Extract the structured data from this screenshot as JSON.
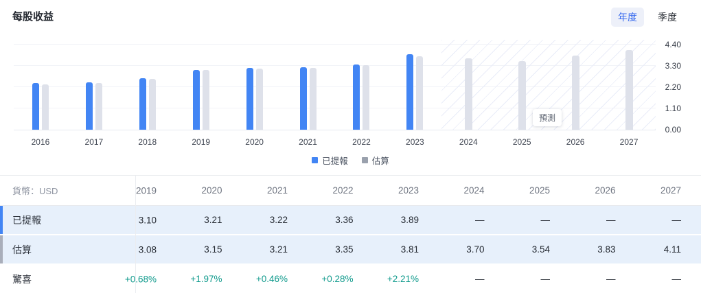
{
  "header": {
    "title": "每股收益",
    "period_tabs": [
      {
        "label": "年度",
        "selected": true
      },
      {
        "label": "季度",
        "selected": false
      }
    ]
  },
  "chart_data": {
    "type": "bar",
    "title": "每股收益",
    "categories": [
      "2016",
      "2017",
      "2018",
      "2019",
      "2020",
      "2021",
      "2022",
      "2023",
      "2024",
      "2025",
      "2026",
      "2027"
    ],
    "series": [
      {
        "name": "已提報",
        "color": "#4285f4",
        "values": [
          2.4,
          2.44,
          2.65,
          3.1,
          3.21,
          3.22,
          3.36,
          3.89,
          null,
          null,
          null,
          null
        ]
      },
      {
        "name": "估算",
        "color": "#dee1ea",
        "values": [
          2.33,
          2.43,
          2.61,
          3.08,
          3.15,
          3.21,
          3.35,
          3.81,
          3.7,
          3.54,
          3.83,
          4.11
        ]
      }
    ],
    "y_ticks": [
      "0.00",
      "1.10",
      "2.20",
      "3.30",
      "4.40"
    ],
    "ylim": [
      0,
      4.68
    ],
    "grid": true,
    "legend_position": "bottom",
    "legend_swatch_colors": [
      "#4285f4",
      "#9aa1ad"
    ],
    "forecast_start_index": 8,
    "forecast_label": "預測"
  },
  "table": {
    "currency_label": "貨幣：USD",
    "years": [
      "2019",
      "2020",
      "2021",
      "2022",
      "2023",
      "2024",
      "2025",
      "2026",
      "2027"
    ],
    "rows": [
      {
        "key": "reported",
        "label": "已提報",
        "indicator": "#4285f4",
        "highlight": true,
        "values": [
          "3.10",
          "3.21",
          "3.22",
          "3.36",
          "3.89",
          "—",
          "—",
          "—",
          "—"
        ]
      },
      {
        "key": "estimate",
        "label": "估算",
        "indicator": "#a9aeba",
        "highlight": true,
        "values": [
          "3.08",
          "3.15",
          "3.21",
          "3.35",
          "3.81",
          "3.70",
          "3.54",
          "3.83",
          "4.11"
        ]
      },
      {
        "key": "surprise",
        "label": "驚喜",
        "indicator": null,
        "highlight": false,
        "values": [
          "+0.68%",
          "+1.97%",
          "+0.46%",
          "+0.28%",
          "+2.21%",
          "—",
          "—",
          "—",
          "—"
        ]
      }
    ]
  },
  "colors": {
    "accent_blue": "#4285f4",
    "bar_gray": "#dee1ea",
    "row_highlight": "#e7f0fb",
    "surprise_green": "#0f9a8c",
    "tab_active_bg": "#edf0f9",
    "tab_active_text": "#3a6cee"
  }
}
